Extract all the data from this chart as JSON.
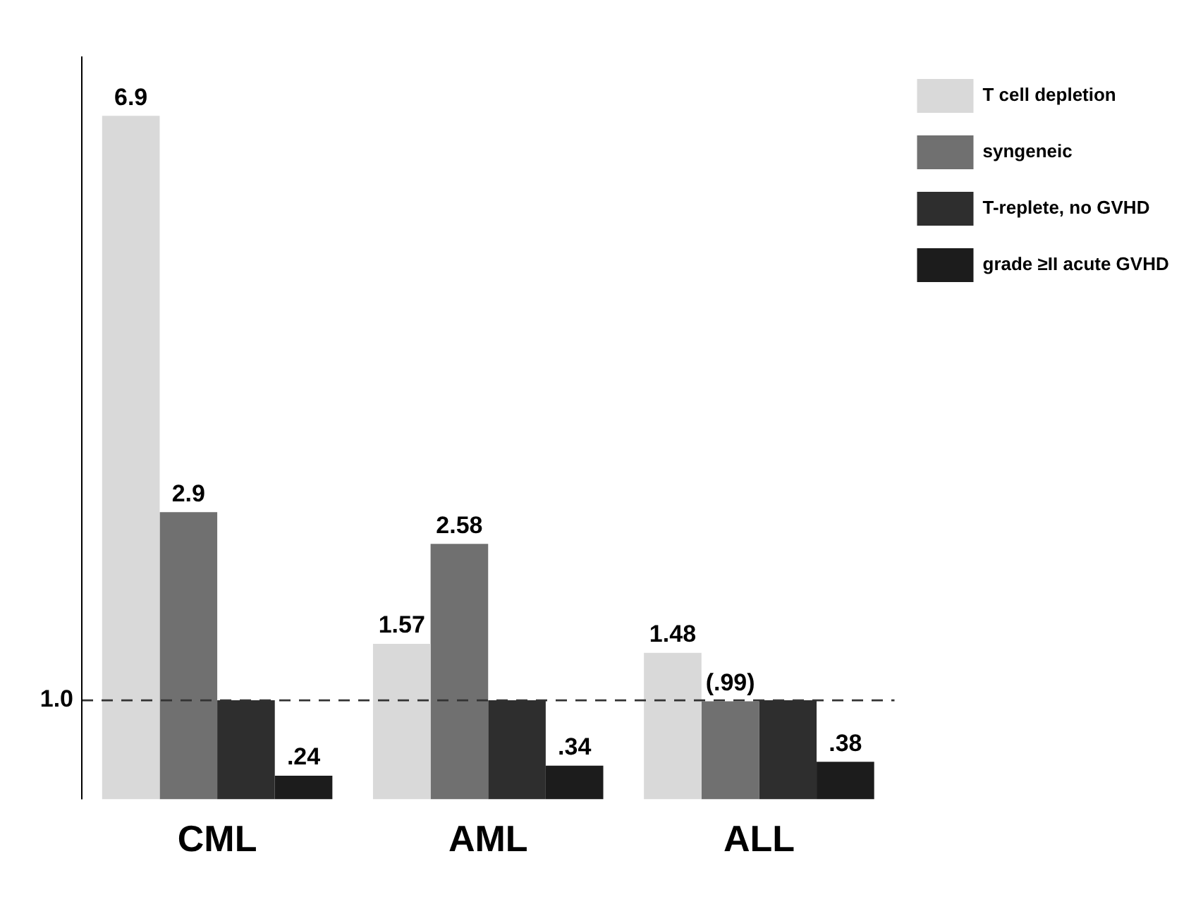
{
  "chart_data": {
    "type": "bar",
    "categories": [
      "CML",
      "AML",
      "ALL"
    ],
    "series": [
      {
        "name": "T cell depletion",
        "color": "#d9d9d9",
        "values": [
          6.9,
          1.57,
          1.48
        ],
        "value_labels": [
          "6.9",
          "1.57",
          "1.48"
        ]
      },
      {
        "name": "syngeneic",
        "color": "#707070",
        "values": [
          2.9,
          2.58,
          0.99
        ],
        "value_labels": [
          "2.9",
          "2.58",
          "(.99)"
        ]
      },
      {
        "name": "T-replete, no GVHD",
        "color": "#2e2e2e",
        "values": [
          1.0,
          1.0,
          1.0
        ],
        "value_labels": [
          null,
          null,
          null
        ]
      },
      {
        "name": "grade ≥II acute GVHD",
        "color": "#1c1c1c",
        "values": [
          0.24,
          0.34,
          0.38
        ],
        "value_labels": [
          ".24",
          ".34",
          ".38"
        ]
      }
    ],
    "ylim": [
      0,
      7.5
    ],
    "tick_labels": "x",
    "grid": false,
    "legend": "right",
    "ref_lines": [
      {
        "axis": "y",
        "value": 1.0,
        "label": "1.0",
        "line_style": "dashed",
        "color": "#333333"
      }
    ]
  }
}
